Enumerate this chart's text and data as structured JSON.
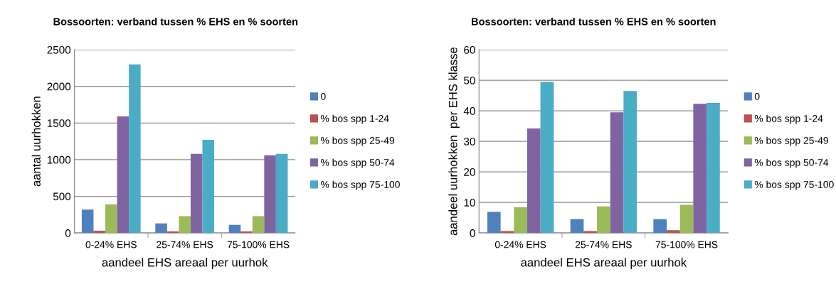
{
  "chart_data": [
    {
      "type": "bar",
      "title": "Bossoorten: verband tussen % EHS en % soorten",
      "xlabel": "aandeel EHS areaal per uurhok",
      "ylabel": "aantal uurhokken",
      "categories": [
        "0-24% EHS",
        "25-74% EHS",
        "75-100% EHS"
      ],
      "series": [
        {
          "name": "0",
          "color": "#4f81bd",
          "values": [
            320,
            130,
            110
          ]
        },
        {
          "name": "% bos spp 1-24",
          "color": "#c0504d",
          "values": [
            30,
            20,
            20
          ]
        },
        {
          "name": "% bos spp 25-49",
          "color": "#9bbb59",
          "values": [
            390,
            230,
            230
          ]
        },
        {
          "name": "% bos spp 50-74",
          "color": "#8064a2",
          "values": [
            1590,
            1080,
            1060
          ]
        },
        {
          "name": "% bos spp 75-100",
          "color": "#4bacc6",
          "values": [
            2300,
            1270,
            1080
          ]
        }
      ],
      "ylim": [
        0,
        2500
      ],
      "yticks": [
        0,
        500,
        1000,
        1500,
        2000,
        2500
      ],
      "grid": "y",
      "legend": "right"
    },
    {
      "type": "bar",
      "title": "Bossoorten: verband tussen % EHS en % soorten",
      "xlabel": "aandeel EHS areaal per uurhok",
      "ylabel": "aandeel uurhokken  per EHS klasse",
      "categories": [
        "0-24% EHS",
        "25-74% EHS",
        "75-100% EHS"
      ],
      "series": [
        {
          "name": "0",
          "color": "#4f81bd",
          "values": [
            6.9,
            4.5,
            4.5
          ]
        },
        {
          "name": "% bos spp 1-24",
          "color": "#c0504d",
          "values": [
            0.6,
            0.6,
            0.9
          ]
        },
        {
          "name": "% bos spp 25-49",
          "color": "#9bbb59",
          "values": [
            8.4,
            8.7,
            9.2
          ]
        },
        {
          "name": "% bos spp 50-74",
          "color": "#8064a2",
          "values": [
            34.2,
            39.5,
            42.3
          ]
        },
        {
          "name": "% bos spp 75-100",
          "color": "#4bacc6",
          "values": [
            49.5,
            46.5,
            42.6
          ]
        }
      ],
      "ylim": [
        0,
        60
      ],
      "yticks": [
        0,
        10,
        20,
        30,
        40,
        50,
        60
      ],
      "grid": "y",
      "legend": "right"
    }
  ]
}
